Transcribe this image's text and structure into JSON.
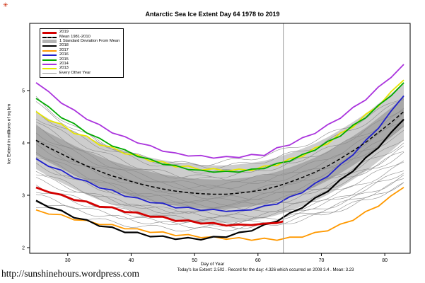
{
  "page": {
    "ornament": "✳",
    "title": "Antarctic Sea Ice Extent Day 64 1978 to 2019",
    "xlabel": "Day of Year",
    "ylabel": "Ice Extent in millions of sq km",
    "caption": "Today's Ice Extent: 2.502  . Record for the day: 4.326 which occurred on 2008 3.4  . Mean: 3.23",
    "url": "http://sunshinehours.wordpress.com"
  },
  "legend": [
    {
      "label": "2019",
      "color": "#d40000",
      "width": 3,
      "dash": "solid"
    },
    {
      "label": "Mean 1981-2010",
      "color": "#000000",
      "width": 2,
      "dash": "dashed"
    },
    {
      "label": "1 Standard Deviation From Mean",
      "color": "#b4b4b4",
      "width": 5,
      "dash": "solid"
    },
    {
      "label": "2018",
      "color": "#000000",
      "width": 2,
      "dash": "solid"
    },
    {
      "label": "2017",
      "color": "#ff9900",
      "width": 2,
      "dash": "solid"
    },
    {
      "label": "2016",
      "color": "#2020cc",
      "width": 2,
      "dash": "solid"
    },
    {
      "label": "2015",
      "color": "#00aa00",
      "width": 2,
      "dash": "solid"
    },
    {
      "label": "2014",
      "color": "#aa33dd",
      "width": 2,
      "dash": "solid"
    },
    {
      "label": "2013",
      "color": "#e6e600",
      "width": 2,
      "dash": "solid"
    },
    {
      "label": "Every Other Year",
      "color": "#999999",
      "width": 1,
      "dash": "solid"
    }
  ],
  "chart_data": {
    "type": "line",
    "title": "Antarctic Sea Ice Extent Day 64 1978 to 2019",
    "xlabel": "Day of Year",
    "ylabel": "Ice Extent in millions of sq km",
    "xlim": [
      24,
      84
    ],
    "ylim": [
      1.9,
      6.3
    ],
    "xticks": [
      30,
      40,
      50,
      60,
      70,
      80
    ],
    "yticks": [
      2,
      3,
      4,
      5
    ],
    "marker_line_x": 64,
    "grid": false,
    "legend_position": "top-left",
    "x": [
      25,
      27,
      29,
      31,
      33,
      35,
      37,
      39,
      41,
      43,
      45,
      47,
      49,
      51,
      53,
      55,
      57,
      59,
      61,
      63,
      65,
      67,
      69,
      71,
      73,
      75,
      77,
      79,
      81,
      83
    ],
    "band": {
      "name": "1 Standard Deviation From Mean",
      "outer_color": "#cdcdcd",
      "inner_color": "#a8a8a8",
      "upper": [
        4.6,
        4.46,
        4.34,
        4.22,
        4.11,
        4.01,
        3.92,
        3.85,
        3.78,
        3.72,
        3.67,
        3.63,
        3.6,
        3.58,
        3.57,
        3.57,
        3.59,
        3.62,
        3.66,
        3.72,
        3.8,
        3.89,
        3.99,
        4.11,
        4.25,
        4.4,
        4.56,
        4.75,
        4.94,
        5.15
      ],
      "lower": [
        3.5,
        3.36,
        3.24,
        3.12,
        3.01,
        2.91,
        2.82,
        2.75,
        2.68,
        2.62,
        2.57,
        2.53,
        2.5,
        2.48,
        2.47,
        2.47,
        2.49,
        2.52,
        2.56,
        2.62,
        2.7,
        2.79,
        2.89,
        3.01,
        3.15,
        3.3,
        3.46,
        3.65,
        3.84,
        4.05
      ]
    },
    "series": [
      {
        "name": "2013",
        "color": "#e6e600",
        "width": 1.8,
        "values": [
          4.6,
          4.43,
          4.36,
          4.18,
          4.13,
          3.96,
          3.92,
          3.79,
          3.77,
          3.65,
          3.64,
          3.54,
          3.56,
          3.48,
          3.51,
          3.46,
          3.5,
          3.47,
          3.56,
          3.57,
          3.7,
          3.74,
          3.91,
          3.98,
          4.19,
          4.3,
          4.55,
          4.7,
          4.98,
          5.2
        ]
      },
      {
        "name": "2014",
        "color": "#aa33dd",
        "width": 1.8,
        "values": [
          5.15,
          4.98,
          4.76,
          4.63,
          4.45,
          4.35,
          4.19,
          4.12,
          4.0,
          3.95,
          3.84,
          3.81,
          3.75,
          3.76,
          3.71,
          3.74,
          3.72,
          3.78,
          3.76,
          3.91,
          3.96,
          4.1,
          4.18,
          4.35,
          4.47,
          4.68,
          4.82,
          5.07,
          5.25,
          5.5
        ]
      },
      {
        "name": "2015",
        "color": "#00aa00",
        "width": 1.8,
        "values": [
          4.85,
          4.69,
          4.48,
          4.37,
          4.19,
          4.09,
          3.94,
          3.87,
          3.74,
          3.69,
          3.59,
          3.57,
          3.49,
          3.48,
          3.44,
          3.46,
          3.44,
          3.5,
          3.51,
          3.61,
          3.65,
          3.78,
          3.86,
          4.03,
          4.13,
          4.34,
          4.48,
          4.72,
          4.9,
          5.15
        ]
      },
      {
        "name": "2016",
        "color": "#2020cc",
        "width": 1.8,
        "values": [
          3.7,
          3.55,
          3.48,
          3.33,
          3.27,
          3.14,
          3.1,
          2.98,
          2.95,
          2.86,
          2.85,
          2.76,
          2.77,
          2.71,
          2.73,
          2.69,
          2.71,
          2.72,
          2.8,
          2.83,
          2.97,
          3.05,
          3.23,
          3.36,
          3.59,
          3.77,
          4.05,
          4.28,
          4.61,
          4.9
        ]
      },
      {
        "name": "2017",
        "color": "#ff9900",
        "width": 1.8,
        "values": [
          2.72,
          2.64,
          2.63,
          2.53,
          2.52,
          2.44,
          2.44,
          2.36,
          2.36,
          2.29,
          2.3,
          2.23,
          2.25,
          2.19,
          2.21,
          2.16,
          2.19,
          2.14,
          2.18,
          2.14,
          2.2,
          2.2,
          2.29,
          2.32,
          2.45,
          2.52,
          2.69,
          2.79,
          2.99,
          3.15
        ]
      },
      {
        "name": "Mean 1981-2010",
        "color": "#000000",
        "width": 1.5,
        "dash": "5,3",
        "values": [
          4.05,
          3.91,
          3.79,
          3.67,
          3.56,
          3.46,
          3.37,
          3.3,
          3.23,
          3.17,
          3.12,
          3.08,
          3.05,
          3.03,
          3.02,
          3.02,
          3.04,
          3.07,
          3.11,
          3.17,
          3.25,
          3.34,
          3.44,
          3.56,
          3.7,
          3.85,
          4.01,
          4.2,
          4.39,
          4.6
        ]
      },
      {
        "name": "2018",
        "color": "#000000",
        "width": 2.2,
        "values": [
          2.9,
          2.77,
          2.71,
          2.57,
          2.53,
          2.41,
          2.39,
          2.29,
          2.29,
          2.21,
          2.22,
          2.16,
          2.19,
          2.15,
          2.21,
          2.2,
          2.29,
          2.32,
          2.44,
          2.5,
          2.66,
          2.76,
          2.95,
          3.07,
          3.3,
          3.46,
          3.72,
          3.91,
          4.2,
          4.45
        ]
      },
      {
        "name": "2019",
        "color": "#d40000",
        "width": 2.8,
        "x": [
          25,
          27,
          29,
          31,
          33,
          35,
          37,
          39,
          41,
          43,
          45,
          47,
          49,
          51,
          53,
          55,
          57,
          59,
          61,
          63,
          64
        ],
        "values": [
          3.15,
          3.06,
          3.01,
          2.91,
          2.88,
          2.78,
          2.77,
          2.68,
          2.67,
          2.59,
          2.59,
          2.51,
          2.52,
          2.46,
          2.47,
          2.42,
          2.44,
          2.43,
          2.46,
          2.47,
          2.502
        ]
      }
    ],
    "other_years": {
      "name": "Every Other Year",
      "color": "#8c8c8c",
      "width": 0.6,
      "shape_params_note": "each line: [value_at_day25, min_value, value_at_day83, day_of_min]",
      "lines": [
        [
          4.75,
          3.55,
          4.85,
          52
        ],
        [
          4.6,
          3.45,
          4.7,
          54
        ],
        [
          4.5,
          3.3,
          4.55,
          55
        ],
        [
          4.4,
          3.35,
          4.6,
          50
        ],
        [
          4.3,
          3.2,
          4.45,
          53
        ],
        [
          4.2,
          3.1,
          4.35,
          56
        ],
        [
          4.1,
          3.15,
          4.2,
          51
        ],
        [
          4.0,
          3.0,
          4.3,
          54
        ],
        [
          3.95,
          2.95,
          4.1,
          57
        ],
        [
          3.85,
          2.9,
          4.0,
          52
        ],
        [
          3.75,
          2.85,
          3.9,
          55
        ],
        [
          3.65,
          2.8,
          3.85,
          53
        ],
        [
          3.6,
          2.75,
          3.7,
          56
        ],
        [
          3.5,
          2.7,
          3.8,
          50
        ],
        [
          3.4,
          2.65,
          3.6,
          54
        ],
        [
          3.3,
          2.6,
          3.5,
          57
        ],
        [
          3.2,
          2.55,
          3.45,
          52
        ],
        [
          3.1,
          2.5,
          3.35,
          55
        ],
        [
          3.0,
          2.45,
          3.3,
          53
        ],
        [
          4.85,
          3.6,
          4.9,
          49
        ],
        [
          2.9,
          2.4,
          3.25,
          56
        ],
        [
          2.8,
          2.35,
          3.2,
          51
        ]
      ]
    }
  }
}
